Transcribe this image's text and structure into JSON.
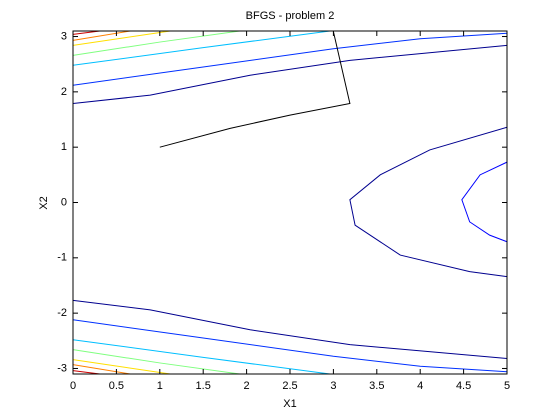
{
  "chart_data": {
    "type": "contour",
    "title": "BFGS - problem 2",
    "x_label": "X1",
    "y_label": "X2",
    "xlim": [
      0,
      5
    ],
    "ylim": [
      -3.1,
      3.1
    ],
    "xticks": [
      0,
      0.5,
      1,
      1.5,
      2,
      2.5,
      3,
      3.5,
      4,
      4.5,
      5
    ],
    "yticks": [
      -3,
      -2,
      -1,
      0,
      1,
      2,
      3
    ],
    "series": [
      {
        "color": "#00008f",
        "x": [
          5,
          4.11,
          3.54,
          3.19,
          3.25,
          3.77,
          4.57,
          5
        ],
        "y": [
          1.36,
          0.95,
          0.5,
          0.05,
          -0.41,
          -0.95,
          -1.25,
          -1.34
        ]
      },
      {
        "color": "#0000ff",
        "x": [
          5,
          4.69,
          4.48,
          4.57,
          4.8,
          5
        ],
        "y": [
          0.73,
          0.5,
          0.05,
          -0.35,
          -0.59,
          -0.71
        ]
      },
      {
        "color": "#00008f",
        "x": [
          0,
          0.89,
          2.04,
          3.19,
          5
        ],
        "y": [
          1.79,
          1.94,
          2.3,
          2.57,
          2.84
        ]
      },
      {
        "color": "#0030ff",
        "x": [
          0,
          1.5,
          3,
          4.0,
          5
        ],
        "y": [
          2.12,
          2.45,
          2.78,
          2.96,
          3.06
        ]
      },
      {
        "color": "#00bfff",
        "x": [
          0,
          1.5,
          2.96
        ],
        "y": [
          2.48,
          2.8,
          3.1
        ]
      },
      {
        "color": "#7fff7f",
        "x": [
          0,
          1,
          1.92
        ],
        "y": [
          2.66,
          2.9,
          3.1
        ]
      },
      {
        "color": "#ffdf00",
        "x": [
          0,
          1.12
        ],
        "y": [
          2.84,
          3.1
        ]
      },
      {
        "color": "#ff8000",
        "x": [
          0,
          0.66
        ],
        "y": [
          2.93,
          3.1
        ]
      },
      {
        "color": "#cc0000",
        "x": [
          0,
          0.31
        ],
        "y": [
          3.04,
          3.1
        ]
      },
      {
        "color": "#00008f",
        "x": [
          0,
          0.89,
          2.04,
          3.19,
          5
        ],
        "y": [
          -1.77,
          -1.94,
          -2.3,
          -2.57,
          -2.82
        ]
      },
      {
        "color": "#0030ff",
        "x": [
          0,
          1.5,
          3,
          4.0,
          5
        ],
        "y": [
          -2.12,
          -2.45,
          -2.78,
          -2.96,
          -3.06
        ]
      },
      {
        "color": "#00bfff",
        "x": [
          0,
          1.5,
          2.96
        ],
        "y": [
          -2.48,
          -2.8,
          -3.1
        ]
      },
      {
        "color": "#7fff7f",
        "x": [
          0,
          1,
          1.92
        ],
        "y": [
          -2.66,
          -2.9,
          -3.1
        ]
      },
      {
        "color": "#ffdf00",
        "x": [
          0,
          1.12
        ],
        "y": [
          -2.84,
          -3.1
        ]
      },
      {
        "color": "#ff8000",
        "x": [
          0,
          0.66
        ],
        "y": [
          -2.93,
          -3.1
        ]
      },
      {
        "color": "#cc0000",
        "x": [
          0,
          0.31
        ],
        "y": [
          -3.04,
          -3.1
        ]
      },
      {
        "color": "#000000",
        "x": [
          1.0,
          1.81,
          2.5,
          3.19,
          3.0
        ],
        "y": [
          1.0,
          1.34,
          1.58,
          1.79,
          3.09
        ]
      }
    ]
  }
}
